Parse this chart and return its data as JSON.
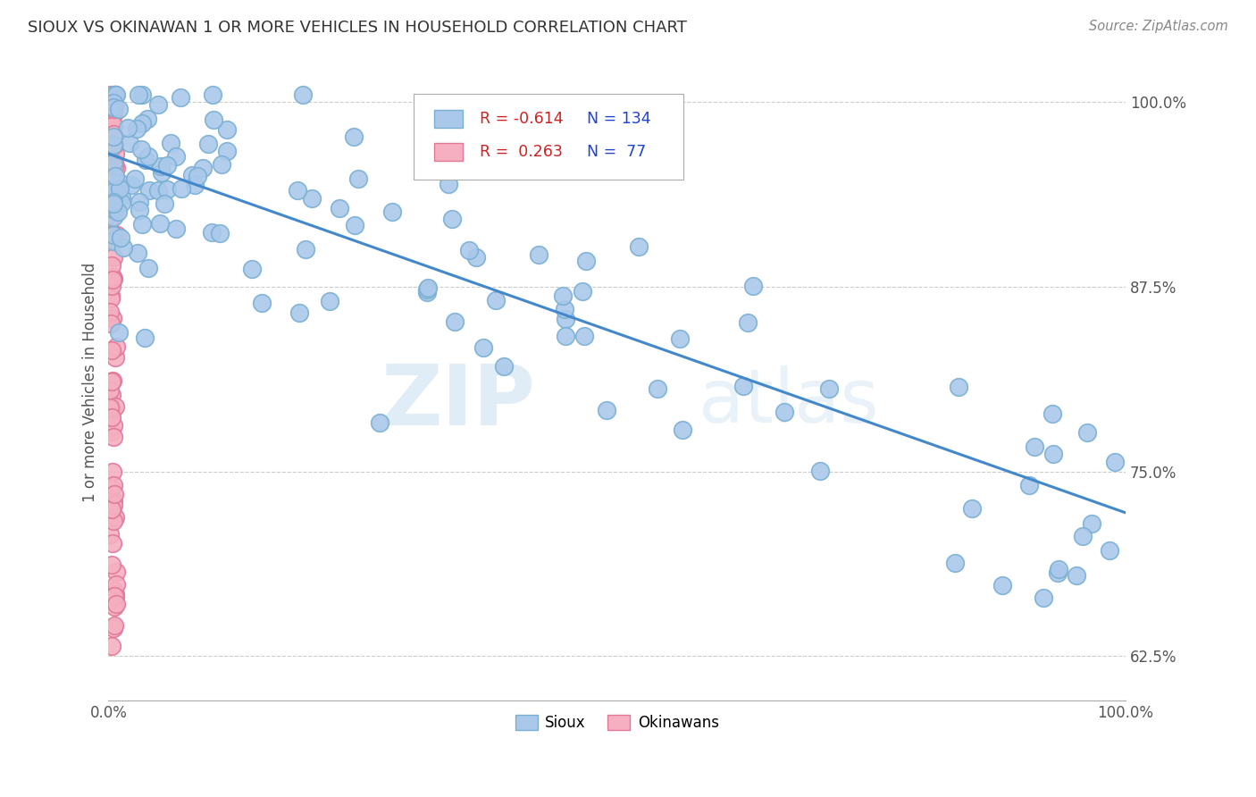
{
  "title": "SIOUX VS OKINAWAN 1 OR MORE VEHICLES IN HOUSEHOLD CORRELATION CHART",
  "source": "Source: ZipAtlas.com",
  "ylabel": "1 or more Vehicles in Household",
  "legend_sioux_R": "-0.614",
  "legend_sioux_N": "134",
  "legend_okinawan_R": "0.263",
  "legend_okinawan_N": "77",
  "legend_sioux_label": "Sioux",
  "legend_okinawan_label": "Okinawans",
  "sioux_color": "#aac9ea",
  "sioux_edge_color": "#7aafd4",
  "okinawan_color": "#f5afc0",
  "okinawan_edge_color": "#e07898",
  "trendline_color": "#4488cc",
  "watermark_zip": "ZIP",
  "watermark_atlas": "atlas",
  "background_color": "#ffffff",
  "trendline_x": [
    0.0,
    1.0
  ],
  "trendline_y_start": 0.965,
  "trendline_y_end": 0.722,
  "xlim": [
    0.0,
    1.0
  ],
  "ylim": [
    0.595,
    1.025
  ],
  "yticks": [
    0.625,
    0.75,
    0.875,
    1.0
  ],
  "ytick_labels": [
    "62.5%",
    "75.0%",
    "87.5%",
    "100.0%"
  ],
  "legend_R_color": "#cc2222",
  "legend_N_color": "#2244cc"
}
